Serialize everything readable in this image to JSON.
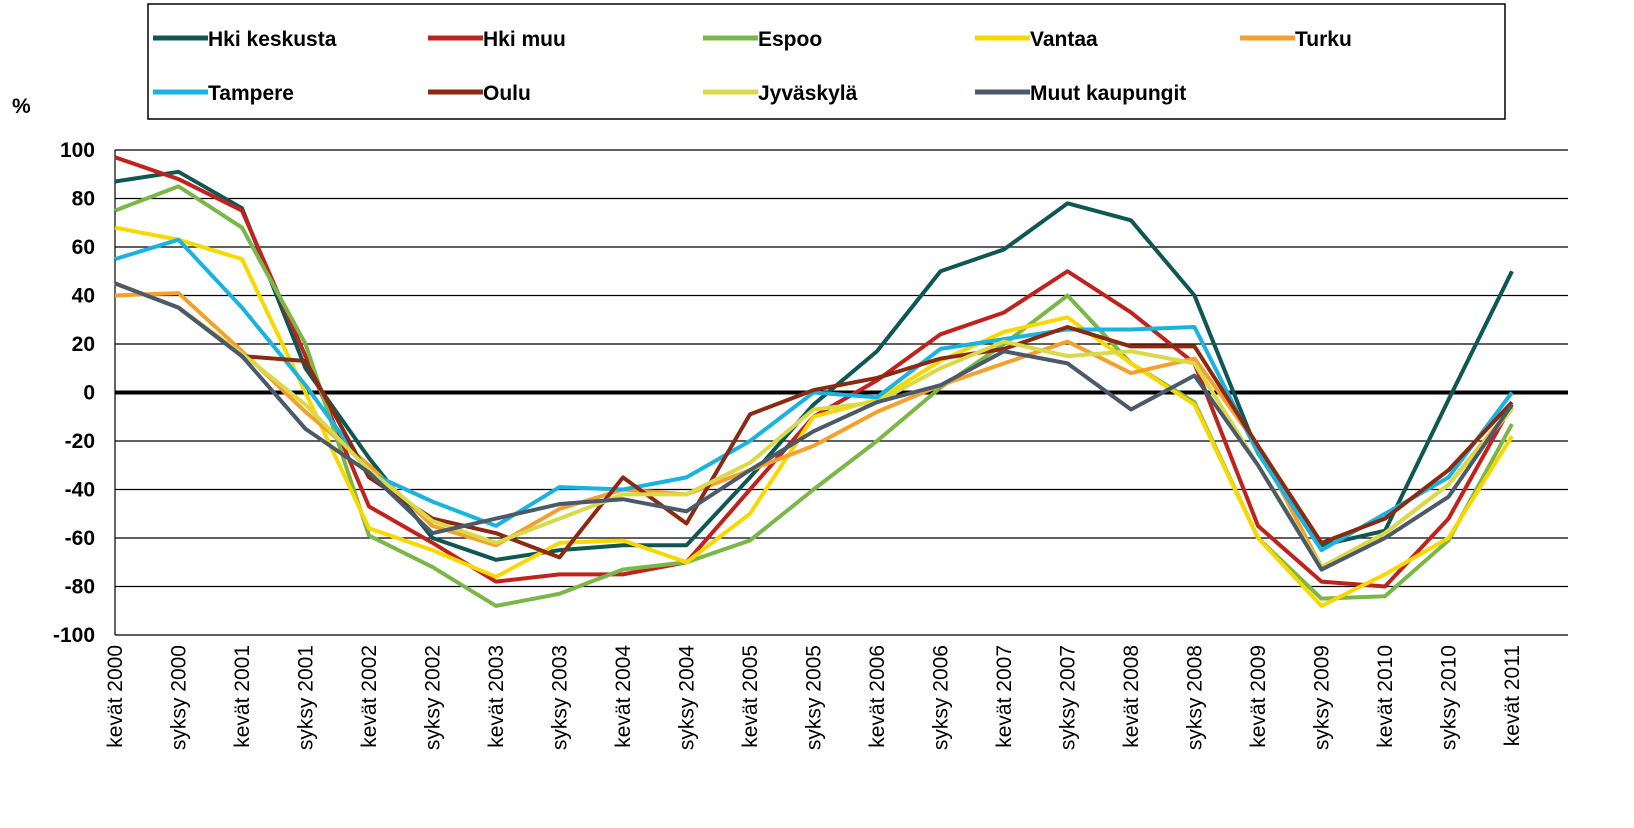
{
  "chart_data": {
    "type": "line",
    "y_label": "%",
    "categories": [
      "kevät 2000",
      "syksy 2000",
      "kevät 2001",
      "syksy 2001",
      "kevät 2002",
      "syksy 2002",
      "kevät 2003",
      "syksy 2003",
      "kevät 2004",
      "syksy 2004",
      "kevät 2005",
      "syksy 2005",
      "kevät 2006",
      "syksy 2006",
      "kevät 2007",
      "syksy 2007",
      "kevät 2008",
      "syksy 2008",
      "kevät 2009",
      "syksy 2009",
      "kevät 2010",
      "syksy 2010",
      "kevät 2011"
    ],
    "ylim": [
      -100,
      100
    ],
    "yticks": [
      -100,
      -80,
      -60,
      -40,
      -20,
      0,
      20,
      40,
      60,
      80,
      100
    ],
    "grid": true,
    "legend": "top",
    "series": [
      {
        "name": "Hki keskusta",
        "color": "#0f5753",
        "values": [
          87,
          91,
          76,
          10,
          -27,
          -60,
          -69,
          -65,
          -63,
          -63,
          -35,
          -5,
          17,
          50,
          59,
          78,
          71,
          40,
          -25,
          -63,
          -57,
          -3,
          50
        ]
      },
      {
        "name": "Hki muu",
        "color": "#c0221d",
        "values": [
          97,
          88,
          75,
          15,
          -47,
          -62,
          -78,
          -75,
          -75,
          -70,
          -40,
          -10,
          5,
          24,
          33,
          50,
          33,
          12,
          -55,
          -78,
          -80,
          -52,
          -5
        ]
      },
      {
        "name": "Espoo",
        "color": "#7ab648",
        "values": [
          75,
          85,
          68,
          20,
          -59,
          -72,
          -88,
          -83,
          -73,
          -70,
          -61,
          -40,
          -20,
          2,
          20,
          40,
          12,
          -4,
          -60,
          -85,
          -84,
          -61,
          -13
        ]
      },
      {
        "name": "Vantaa",
        "color": "#f9d800",
        "values": [
          68,
          63,
          55,
          0,
          -56,
          -65,
          -76,
          -62,
          -61,
          -70,
          -50,
          -10,
          -3,
          13,
          25,
          31,
          12,
          -5,
          -60,
          -88,
          -75,
          -60,
          -18
        ]
      },
      {
        "name": "Turku",
        "color": "#f5a02c",
        "values": [
          40,
          41,
          17,
          -8,
          -30,
          -55,
          -63,
          -48,
          -40,
          -42,
          -32,
          -22,
          -8,
          3,
          12,
          21,
          8,
          14,
          -22,
          -72,
          -58,
          -38,
          -6
        ]
      },
      {
        "name": "Tampere",
        "color": "#1ab2e0",
        "values": [
          55,
          63,
          35,
          3,
          -33,
          -45,
          -55,
          -39,
          -40,
          -35,
          -20,
          0,
          -2,
          18,
          22,
          26,
          26,
          27,
          -25,
          -65,
          -50,
          -35,
          0
        ]
      },
      {
        "name": "Oulu",
        "color": "#8b2a10",
        "values": [
          45,
          35,
          15,
          13,
          -35,
          -52,
          -58,
          -68,
          -35,
          -54,
          -9,
          1,
          6,
          14,
          18,
          27,
          19,
          19,
          -22,
          -62,
          -52,
          -32,
          -4
        ]
      },
      {
        "name": "Jyväskylä",
        "color": "#d9d94a",
        "values": [
          45,
          35,
          16,
          -5,
          -32,
          -53,
          -62,
          -52,
          -42,
          -42,
          -29,
          -7,
          -4,
          10,
          21,
          15,
          17,
          12,
          -30,
          -72,
          -58,
          -38,
          -7
        ]
      },
      {
        "name": "Muut kaupungit",
        "color": "#4a5a6a",
        "values": [
          45,
          35,
          15,
          -15,
          -33,
          -58,
          -52,
          -46,
          -44,
          -49,
          -32,
          -16,
          -4,
          3,
          17,
          12,
          -7,
          7,
          -30,
          -73,
          -60,
          -43,
          -5
        ]
      }
    ]
  }
}
